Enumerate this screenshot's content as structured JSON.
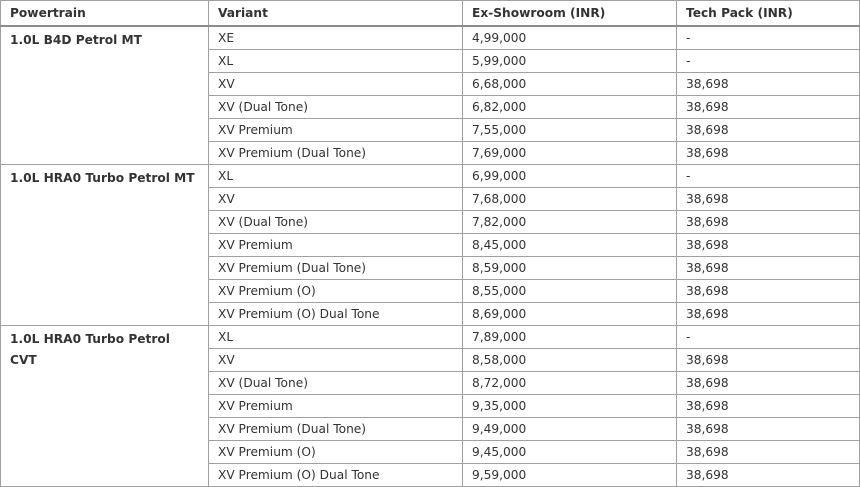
{
  "headers": [
    "Powertrain",
    "Variant",
    "Ex-Showroom (INR)",
    "Tech Pack (INR)"
  ],
  "groups": [
    {
      "powertrain": "1.0L B4D Petrol MT",
      "rows": [
        [
          "XE",
          "4,99,000",
          "-"
        ],
        [
          "XL",
          "5,99,000",
          "-"
        ],
        [
          "XV",
          "6,68,000",
          "38,698"
        ],
        [
          "XV (Dual Tone)",
          "6,82,000",
          "38,698"
        ],
        [
          "XV Premium",
          "7,55,000",
          "38,698"
        ],
        [
          "XV Premium (Dual Tone)",
          "7,69,000",
          "38,698"
        ]
      ]
    },
    {
      "powertrain": "1.0L HRA0 Turbo Petrol MT",
      "rows": [
        [
          "XL",
          "6,99,000",
          "-"
        ],
        [
          "XV",
          "7,68,000",
          "38,698"
        ],
        [
          "XV (Dual Tone)",
          "7,82,000",
          "38,698"
        ],
        [
          "XV Premium",
          "8,45,000",
          "38,698"
        ],
        [
          "XV Premium (Dual Tone)",
          "8,59,000",
          "38,698"
        ],
        [
          "XV Premium (O)",
          "8,55,000",
          "38,698"
        ],
        [
          "XV Premium (O) Dual Tone",
          "8,69,000",
          "38,698"
        ]
      ]
    },
    {
      "powertrain": "1.0L HRA0 Turbo Petrol CVT",
      "rows": [
        [
          "XL",
          "7,89,000",
          "-"
        ],
        [
          "XV",
          "8,58,000",
          "38,698"
        ],
        [
          "XV (Dual Tone)",
          "8,72,000",
          "38,698"
        ],
        [
          "XV Premium",
          "9,35,000",
          "38,698"
        ],
        [
          "XV Premium (Dual Tone)",
          "9,49,000",
          "38,698"
        ],
        [
          "XV Premium (O)",
          "9,45,000",
          "38,698"
        ],
        [
          "XV Premium (O) Dual Tone",
          "9,59,000",
          "38,698"
        ]
      ]
    }
  ]
}
